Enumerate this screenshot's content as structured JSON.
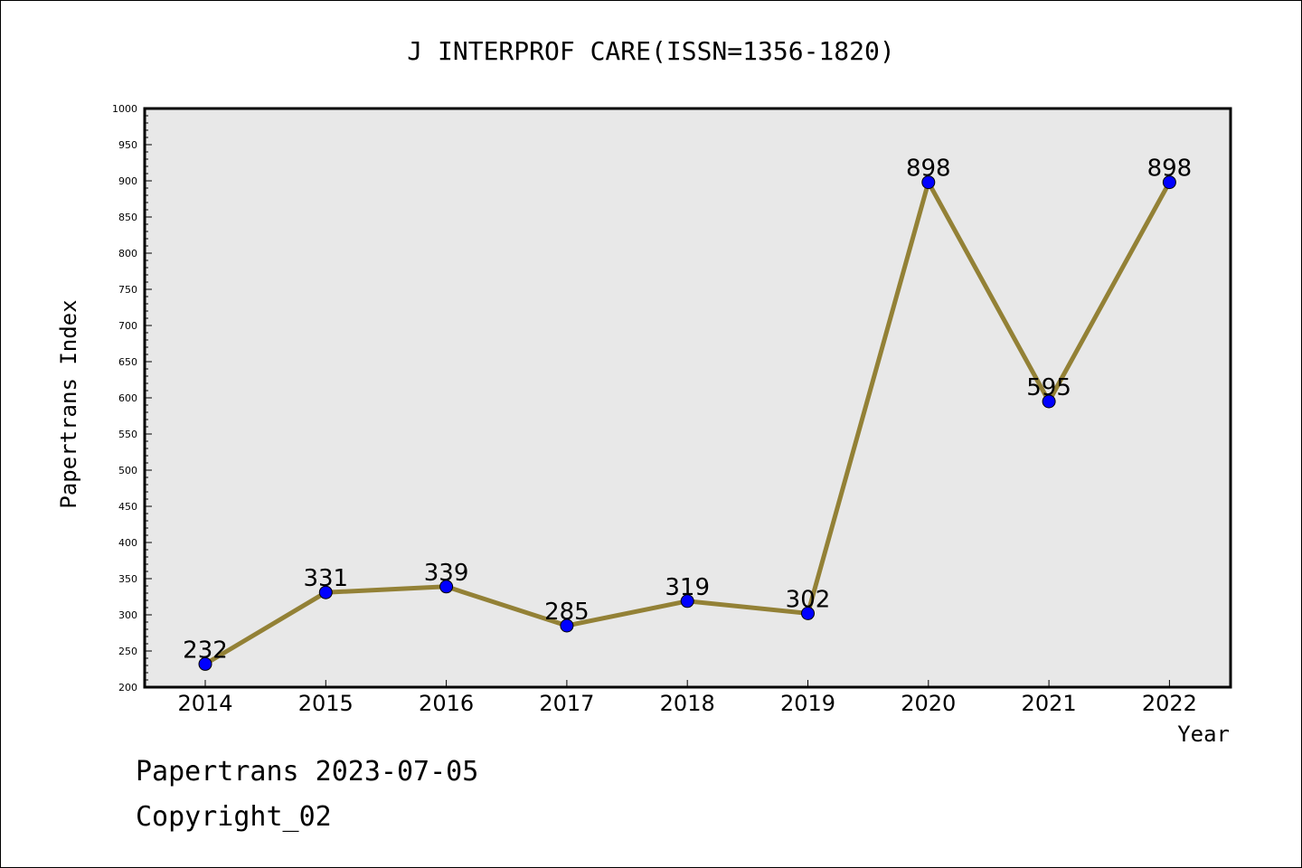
{
  "footer": {
    "line1": "Papertrans 2023-07-05",
    "line2": "Copyright_02"
  },
  "colors": {
    "plot_background": "#e8e8e8",
    "line": "#938136",
    "marker": "#0000ff",
    "axis": "#000000"
  },
  "chart_data": {
    "type": "line",
    "title": "J INTERPROF CARE(ISSN=1356-1820)",
    "xlabel": "Year",
    "ylabel": "Papertrans Index",
    "categories": [
      "2014",
      "2015",
      "2016",
      "2017",
      "2018",
      "2019",
      "2020",
      "2021",
      "2022"
    ],
    "values": [
      232,
      331,
      339,
      285,
      319,
      302,
      898,
      595,
      898
    ],
    "data_labels": [
      "232",
      "331",
      "339",
      "285",
      "319",
      "302",
      "898",
      "595",
      "898"
    ],
    "ylim": [
      200,
      1000
    ],
    "y_ticks": [
      "200",
      "250",
      "300",
      "350",
      "400",
      "450",
      "500",
      "550",
      "600",
      "650",
      "700",
      "750",
      "800",
      "850",
      "900",
      "950",
      "1000"
    ],
    "grid": false,
    "legend": "none"
  }
}
